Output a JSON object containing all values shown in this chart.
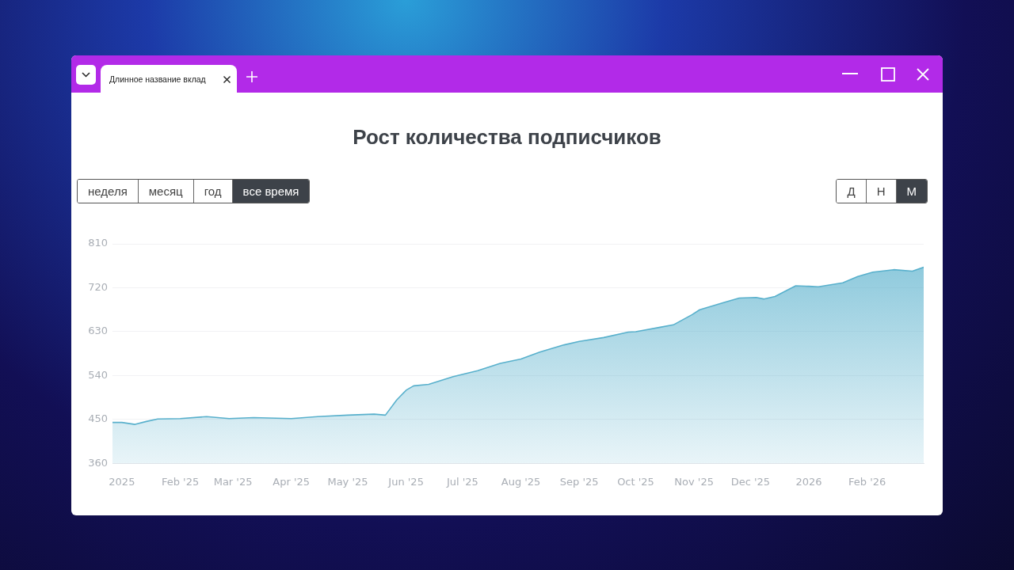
{
  "chart_data": {
    "type": "area",
    "title": "Рост количества подписчиков",
    "annotations": [
      "Длинное название вклад",
      "неделя",
      "месяц",
      "год",
      "все время",
      "Д",
      "Н",
      "М"
    ],
    "x": [
      "2024-12-27",
      "2025-01-01",
      "2025-01-08",
      "2025-01-14",
      "2025-01-20",
      "2025-02-01",
      "2025-02-15",
      "2025-02-27",
      "2025-03-12",
      "2025-04-01",
      "2025-04-15",
      "2025-05-01",
      "2025-05-15",
      "2025-05-21",
      "2025-05-27",
      "2025-06-01",
      "2025-06-05",
      "2025-06-13",
      "2025-06-26",
      "2025-07-09",
      "2025-07-21",
      "2025-08-01",
      "2025-08-11",
      "2025-08-24",
      "2025-09-01",
      "2025-09-14",
      "2025-09-27",
      "2025-10-01",
      "2025-10-14",
      "2025-10-21",
      "2025-10-31",
      "2025-11-04",
      "2025-11-17",
      "2025-11-25",
      "2025-12-04",
      "2025-12-08",
      "2025-12-14",
      "2025-12-25",
      "2026-01-01",
      "2026-01-06",
      "2026-01-19",
      "2026-01-27",
      "2026-02-04",
      "2026-02-15",
      "2026-02-25",
      "2026-03-03"
    ],
    "series": [
      {
        "color": "#58b0cc",
        "values": [
          444,
          444,
          440,
          446,
          451,
          452,
          456,
          452,
          454,
          452,
          456,
          459,
          461,
          459,
          490,
          510,
          519,
          522,
          538,
          550,
          565,
          574,
          588,
          603,
          610,
          618,
          629,
          630,
          639,
          644,
          665,
          675,
          690,
          699,
          700,
          697,
          702,
          724,
          723,
          722,
          730,
          743,
          752,
          757,
          754,
          762
        ]
      }
    ],
    "xlim": [
      "2024-12-27",
      "2026-03-03"
    ],
    "xticks": [
      {
        "value": "2025-01-01",
        "label": "2025"
      },
      {
        "value": "2025-02-01",
        "label": "Feb '25"
      },
      {
        "value": "2025-03-01",
        "label": "Mar '25"
      },
      {
        "value": "2025-04-01",
        "label": "Apr '25"
      },
      {
        "value": "2025-05-01",
        "label": "May '25"
      },
      {
        "value": "2025-06-01",
        "label": "Jun '25"
      },
      {
        "value": "2025-07-01",
        "label": "Jul '25"
      },
      {
        "value": "2025-08-01",
        "label": "Aug '25"
      },
      {
        "value": "2025-09-01",
        "label": "Sep '25"
      },
      {
        "value": "2025-10-01",
        "label": "Oct '25"
      },
      {
        "value": "2025-11-01",
        "label": "Nov '25"
      },
      {
        "value": "2025-12-01",
        "label": "Dec '25"
      },
      {
        "value": "2026-01-01",
        "label": "2026"
      },
      {
        "value": "2026-02-01",
        "label": "Feb '26"
      }
    ],
    "ylim": [
      360,
      810
    ],
    "yticks": [
      360,
      450,
      540,
      630,
      720,
      810
    ],
    "grid": "y",
    "legend": false,
    "marker": "none",
    "line_style": "solid"
  }
}
